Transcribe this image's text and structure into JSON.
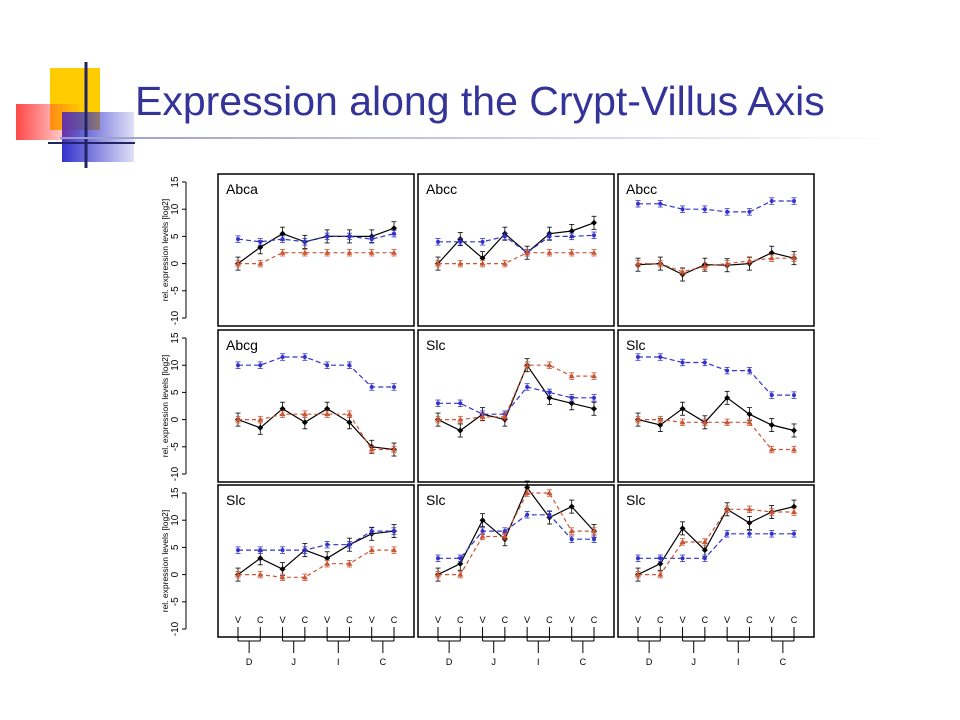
{
  "slide": {
    "title": "Expression along the Crypt-Villus Axis",
    "colors": {
      "title": "#333399",
      "logo_yellow": "#ffcc00",
      "logo_blue": "#3333cc",
      "logo_red": "#ff3333"
    }
  },
  "chart_data": {
    "type": "line",
    "ylabel": "rel. expression levels [log2]",
    "ylim": [
      -10,
      15
    ],
    "y_ticks": [
      "-10",
      "-5",
      "0",
      "5",
      "10",
      "15"
    ],
    "x": [
      1,
      2,
      3,
      4,
      5,
      6,
      7,
      8
    ],
    "x_labels": [
      "V",
      "C",
      "V",
      "C",
      "V",
      "C",
      "V",
      "C"
    ],
    "segments": [
      "D",
      "J",
      "I",
      "C"
    ],
    "series_colors": [
      "#000000",
      "#3333cc",
      "#cc5533"
    ],
    "panels": [
      {
        "title": "Abca",
        "series": [
          {
            "values": [
              0,
              3,
              5.5,
              4,
              5,
              5,
              5,
              6.5
            ]
          },
          {
            "values": [
              4.5,
              4,
              4.5,
              4,
              5,
              5,
              4.5,
              5.5
            ]
          },
          {
            "values": [
              0,
              0,
              2,
              2,
              2,
              2,
              2,
              2
            ]
          }
        ]
      },
      {
        "title": "Abcc",
        "series": [
          {
            "values": [
              0,
              4.5,
              1,
              5.5,
              2,
              5.5,
              6,
              7.5
            ]
          },
          {
            "values": [
              4,
              4,
              4,
              5,
              2,
              5,
              5,
              5.2
            ]
          },
          {
            "values": [
              0,
              0,
              0,
              0,
              2,
              2,
              2,
              2
            ]
          }
        ]
      },
      {
        "title": "Abcc",
        "series": [
          {
            "values": [
              -0.2,
              0,
              -2,
              -0.2,
              -0.3,
              0,
              2,
              1
            ]
          },
          {
            "values": [
              11,
              11,
              10,
              10,
              9.5,
              9.5,
              11.5,
              11.5
            ]
          },
          {
            "values": [
              0,
              0,
              -1.5,
              -0.5,
              0,
              0.5,
              1,
              1
            ]
          }
        ]
      },
      {
        "title": "Abcg",
        "series": [
          {
            "values": [
              0,
              -1.5,
              2,
              -0.5,
              2,
              -0.5,
              -5,
              -5.5
            ]
          },
          {
            "values": [
              10,
              10,
              11.5,
              11.5,
              10,
              10,
              6,
              6
            ]
          },
          {
            "values": [
              0,
              0,
              1,
              1,
              1,
              1,
              -5.5,
              -5.5
            ]
          }
        ]
      },
      {
        "title": "Slc",
        "series": [
          {
            "values": [
              0,
              -2,
              1,
              0,
              10,
              4,
              3,
              2
            ]
          },
          {
            "values": [
              3,
              3,
              1,
              1,
              6,
              5,
              4,
              4
            ]
          },
          {
            "values": [
              0,
              0,
              0.5,
              0.5,
              10,
              10,
              8,
              8
            ]
          }
        ]
      },
      {
        "title": "Slc",
        "series": [
          {
            "values": [
              0,
              -1,
              2,
              -0.5,
              4,
              1,
              -1,
              -2
            ]
          },
          {
            "values": [
              11.5,
              11.5,
              10.5,
              10.5,
              9,
              9,
              4.5,
              4.5
            ]
          },
          {
            "values": [
              0,
              0,
              -0.5,
              -0.5,
              -0.5,
              -0.5,
              -5.5,
              -5.5
            ]
          }
        ]
      },
      {
        "title": "Slc",
        "series": [
          {
            "values": [
              0,
              3,
              1,
              4.5,
              3,
              5.5,
              7.5,
              8
            ]
          },
          {
            "values": [
              4.5,
              4.5,
              4.5,
              4.5,
              5.5,
              5.5,
              8,
              8
            ]
          },
          {
            "values": [
              0,
              0,
              -0.5,
              -0.5,
              2,
              2,
              4.5,
              4.5
            ]
          }
        ]
      },
      {
        "title": "Slc",
        "series": [
          {
            "values": [
              0,
              2,
              10,
              6.5,
              16,
              10.5,
              12.5,
              8
            ]
          },
          {
            "values": [
              3,
              3,
              8,
              8,
              11,
              11,
              6.5,
              6.5
            ]
          },
          {
            "values": [
              0,
              0,
              7,
              7,
              15,
              15,
              8,
              8
            ]
          }
        ]
      },
      {
        "title": "Slc",
        "series": [
          {
            "values": [
              0,
              2,
              8.5,
              4.5,
              12,
              9.5,
              11.5,
              12.5
            ]
          },
          {
            "values": [
              3,
              3,
              3,
              3,
              7.5,
              7.5,
              7.5,
              7.5
            ]
          },
          {
            "values": [
              0,
              0,
              6,
              6,
              12,
              12,
              11.5,
              11.5
            ]
          }
        ]
      }
    ]
  }
}
